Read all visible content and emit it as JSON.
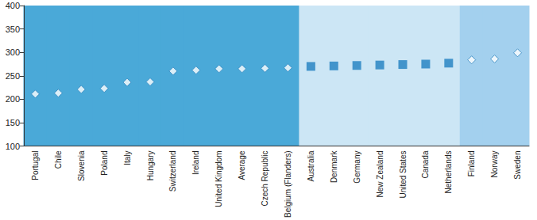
{
  "chart_data": {
    "type": "scatter",
    "categories": [
      "Portugal",
      "Chile",
      "Slovenia",
      "Poland",
      "Italy",
      "Hungary",
      "Switzerland",
      "Ireland",
      "United Kingdom",
      "Average",
      "Czech Republic",
      "Belgium (Flanders)",
      "Australia",
      "Denmark",
      "Germany",
      "New Zealand",
      "United States",
      "Canada",
      "Netherlands",
      "Finland",
      "Norway",
      "Sweden"
    ],
    "series": [
      {
        "color": "#ffffff",
        "marker": "diamond",
        "values": [
          211,
          213,
          221,
          223,
          236,
          237,
          260,
          262,
          265,
          265,
          266,
          267,
          null,
          null,
          null,
          null,
          null,
          null,
          null,
          null,
          null,
          null
        ]
      },
      {
        "color": "#1f7fc0",
        "marker": "square",
        "values": [
          null,
          null,
          null,
          null,
          null,
          null,
          null,
          null,
          null,
          null,
          null,
          null,
          270,
          271,
          272,
          273,
          274,
          275,
          277,
          null,
          null,
          null
        ]
      },
      {
        "color": "#ffffff",
        "marker": "diamond",
        "values": [
          null,
          null,
          null,
          null,
          null,
          null,
          null,
          null,
          null,
          null,
          null,
          null,
          null,
          null,
          null,
          null,
          null,
          null,
          null,
          284,
          286,
          299
        ]
      }
    ],
    "ylim": [
      100,
      400
    ],
    "yticks": [
      100,
      150,
      200,
      250,
      300,
      350,
      400
    ],
    "grid": false
  }
}
